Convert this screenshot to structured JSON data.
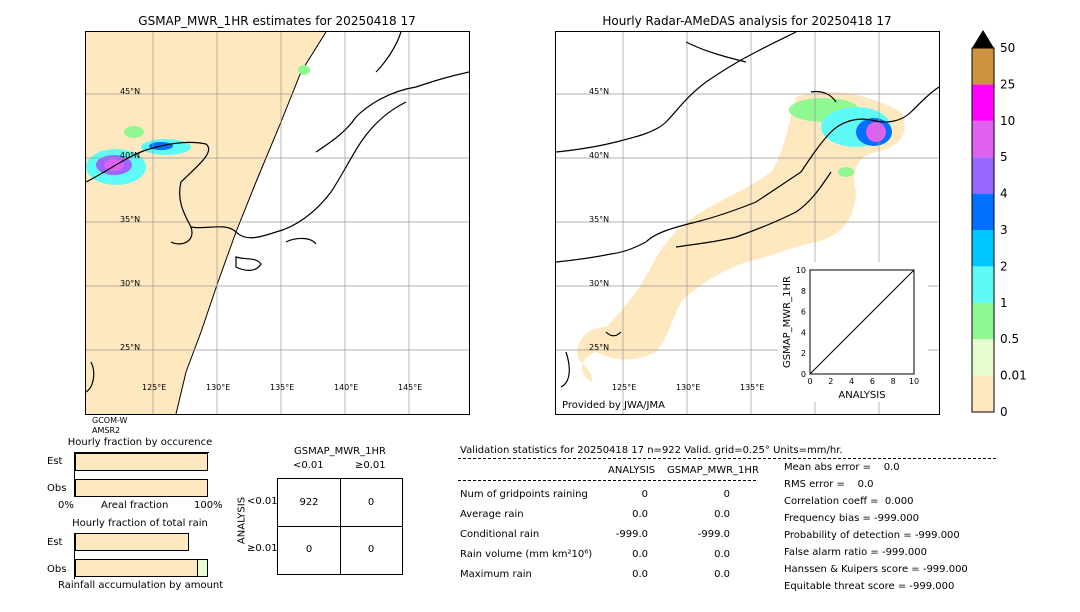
{
  "left_map": {
    "title": "GSMAP_MWR_1HR estimates for 20250418 17",
    "lat_labels": [
      "45°N",
      "40°N",
      "35°N",
      "30°N",
      "25°N"
    ],
    "lon_labels": [
      "125°E",
      "130°E",
      "135°E",
      "140°E",
      "145°E"
    ],
    "sensor_line1": "GCOM-W",
    "sensor_line2": "AMSR2"
  },
  "right_map": {
    "title": "Hourly Radar-AMeDAS analysis for 20250418 17",
    "lat_labels": [
      "45°N",
      "40°N",
      "35°N",
      "30°N",
      "25°N"
    ],
    "lon_labels": [
      "125°E",
      "130°E",
      "135°E"
    ],
    "credit": "Provided by JWA/JMA"
  },
  "scatter": {
    "ylabel": "GSMAP_MWR_1HR",
    "xlabel": "ANALYSIS",
    "ticks": [
      "0",
      "2",
      "4",
      "6",
      "8",
      "10"
    ]
  },
  "colorbar": {
    "labels": [
      "0",
      "0.01",
      "0.5",
      "1",
      "2",
      "3",
      "4",
      "5",
      "10",
      "25",
      "50"
    ],
    "colors": [
      "#fee8c0",
      "#e6fcd0",
      "#90f890",
      "#5efaf5",
      "#00c6ff",
      "#0070ff",
      "#9966ff",
      "#e060f0",
      "#ff00ff",
      "#cc9440",
      "#000000"
    ]
  },
  "occurrence_chart": {
    "title": "Hourly fraction by occurence",
    "row_est": "Est",
    "row_obs": "Obs",
    "x_left": "0%",
    "x_mid": "Areal fraction",
    "x_right": "100%"
  },
  "total_rain_chart": {
    "title": "Hourly fraction of total rain",
    "row_est": "Est",
    "row_obs": "Obs",
    "xlabel": "Rainfall accumulation by amount"
  },
  "contingency": {
    "title": "GSMAP_MWR_1HR",
    "col1": "<0.01",
    "col2": "≥0.01",
    "row_axis": "ANALYSIS",
    "row1": "<0.01",
    "row2": "≥0.01",
    "cells": [
      "922",
      "0",
      "0",
      "0"
    ]
  },
  "validation": {
    "header": "Validation statistics for 20250418 17  n=922 Valid. grid=0.25° Units=mm/hr.",
    "col_analysis": "ANALYSIS",
    "col_gsmap": "GSMAP_MWR_1HR",
    "rows": [
      {
        "label": "Num of gridpoints raining",
        "analysis": "0",
        "gsmap": "0"
      },
      {
        "label": "Average rain",
        "analysis": "0.0",
        "gsmap": "0.0"
      },
      {
        "label": "Conditional rain",
        "analysis": "-999.0",
        "gsmap": "-999.0"
      },
      {
        "label": "Rain volume (mm km²10⁶)",
        "analysis": "0.0",
        "gsmap": "0.0"
      },
      {
        "label": "Maximum rain",
        "analysis": "0.0",
        "gsmap": "0.0"
      }
    ],
    "scores": [
      "Mean abs error =    0.0",
      "RMS error =    0.0",
      "Correlation coeff =  0.000",
      "Frequency bias = -999.000",
      "Probability of detection = -999.000",
      "False alarm ratio = -999.000",
      "Hanssen & Kuipers score = -999.000",
      "Equitable threat score = -999.000"
    ]
  },
  "chart_data": {
    "type": "table",
    "contingency_table": [
      [
        922,
        0
      ],
      [
        0,
        0
      ]
    ],
    "occurrence_fraction": {
      "Est": 0.99,
      "Obs": 0.99
    },
    "total_rain_fraction": {
      "Est": 0.85,
      "Obs": 0.92
    }
  }
}
